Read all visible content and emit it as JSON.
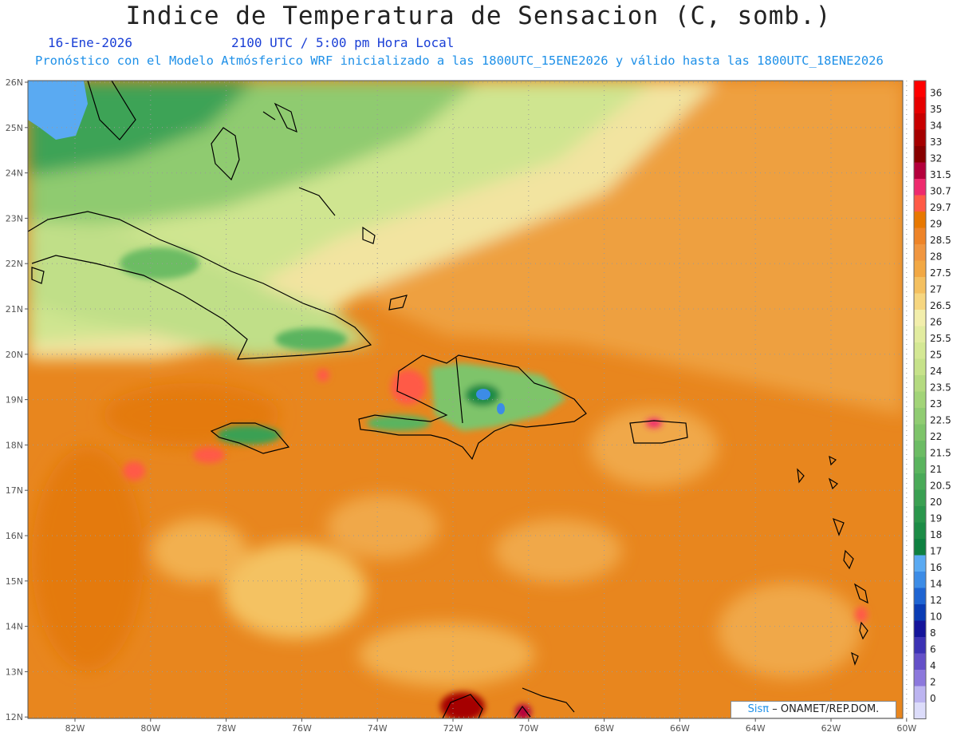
{
  "title": "Indice de Temperatura de Sensacion (C, somb.)",
  "date": "16-Ene-2026",
  "time": "2100 UTC / 5:00 pm Hora Local",
  "subtitle": "Pronóstico con el Modelo Atmósferico WRF inicializado a las 1800UTC_15ENE2026 y válido hasta las  1800UTC_18ENE2026",
  "credit": {
    "logo": "Sisπ",
    "text": "– ONAMET/REP.DOM."
  },
  "lat_labels": [
    "26N",
    "25N",
    "24N",
    "23N",
    "22N",
    "21N",
    "20N",
    "19N",
    "18N",
    "17N",
    "16N",
    "15N",
    "14N",
    "13N",
    "12N"
  ],
  "lon_labels": [
    "82W",
    "80W",
    "78W",
    "76W",
    "74W",
    "72W",
    "70W",
    "68W",
    "66W",
    "64W",
    "62W",
    "60W"
  ],
  "colorbar": [
    {
      "label": "36",
      "color": "#ff0000"
    },
    {
      "label": "35",
      "color": "#e60000"
    },
    {
      "label": "34",
      "color": "#c80000"
    },
    {
      "label": "33",
      "color": "#a50000"
    },
    {
      "label": "32",
      "color": "#870000"
    },
    {
      "label": "31.5",
      "color": "#b4003c"
    },
    {
      "label": "30.7",
      "color": "#ee2a6e"
    },
    {
      "label": "29.7",
      "color": "#ff5a46"
    },
    {
      "label": "29",
      "color": "#e87800"
    },
    {
      "label": "28.5",
      "color": "#ee8428"
    },
    {
      "label": "28",
      "color": "#f09640"
    },
    {
      "label": "27.5",
      "color": "#f2a844"
    },
    {
      "label": "27",
      "color": "#f4c060"
    },
    {
      "label": "26.5",
      "color": "#f6d680"
    },
    {
      "label": "26",
      "color": "#f2eeac"
    },
    {
      "label": "25.5",
      "color": "#e2eca0"
    },
    {
      "label": "25",
      "color": "#d4e894"
    },
    {
      "label": "24",
      "color": "#c6e28a"
    },
    {
      "label": "23.5",
      "color": "#b4da80"
    },
    {
      "label": "23",
      "color": "#a2d478"
    },
    {
      "label": "22.5",
      "color": "#90cc72"
    },
    {
      "label": "22",
      "color": "#7ec46a"
    },
    {
      "label": "21.5",
      "color": "#6cbc64"
    },
    {
      "label": "21",
      "color": "#5ab45e"
    },
    {
      "label": "20.5",
      "color": "#4aaa58"
    },
    {
      "label": "20",
      "color": "#3aa052"
    },
    {
      "label": "19",
      "color": "#2a964c"
    },
    {
      "label": "18",
      "color": "#1c8c46"
    },
    {
      "label": "17",
      "color": "#0e8040"
    },
    {
      "label": "16",
      "color": "#5aaaf2"
    },
    {
      "label": "14",
      "color": "#3c8ce6"
    },
    {
      "label": "12",
      "color": "#1e64d2"
    },
    {
      "label": "10",
      "color": "#0a3cb4"
    },
    {
      "label": "8",
      "color": "#14149a"
    },
    {
      "label": "6",
      "color": "#3c32b4"
    },
    {
      "label": "4",
      "color": "#6450c8"
    },
    {
      "label": "2",
      "color": "#8c78dc"
    },
    {
      "label": "0",
      "color": "#bcb4f0"
    },
    {
      "label": "",
      "color": "#dcdcfa"
    }
  ]
}
